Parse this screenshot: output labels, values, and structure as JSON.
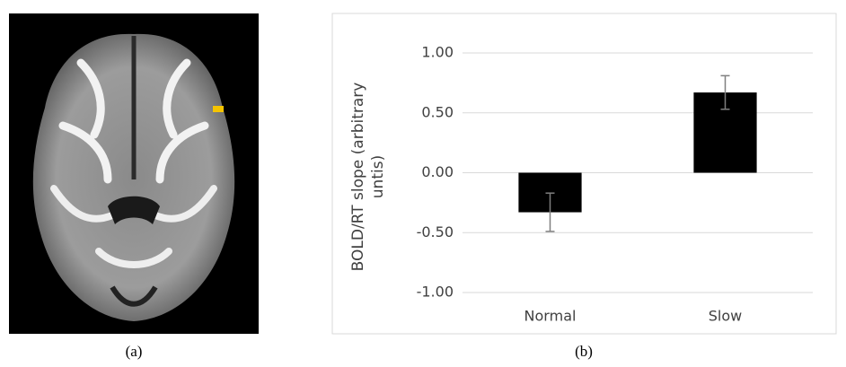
{
  "chart_data": {
    "type": "bar",
    "ylabel": "BOLD/RT slope (arbitrary untis)",
    "categories": [
      "Normal",
      "Slow"
    ],
    "values": [
      -0.33,
      0.67
    ],
    "errors": [
      0.16,
      0.14
    ],
    "color": "#000000",
    "ylim": [
      -1,
      1
    ],
    "yticks": [
      {
        "value": -1,
        "label": "-1.00"
      },
      {
        "value": -0.5,
        "label": "-0.50"
      },
      {
        "value": 0,
        "label": "0.00"
      },
      {
        "value": 0.5,
        "label": "0.50"
      },
      {
        "value": 1,
        "label": "1.00"
      }
    ],
    "grid": true
  },
  "captions": [
    "(a)",
    "(b)"
  ]
}
